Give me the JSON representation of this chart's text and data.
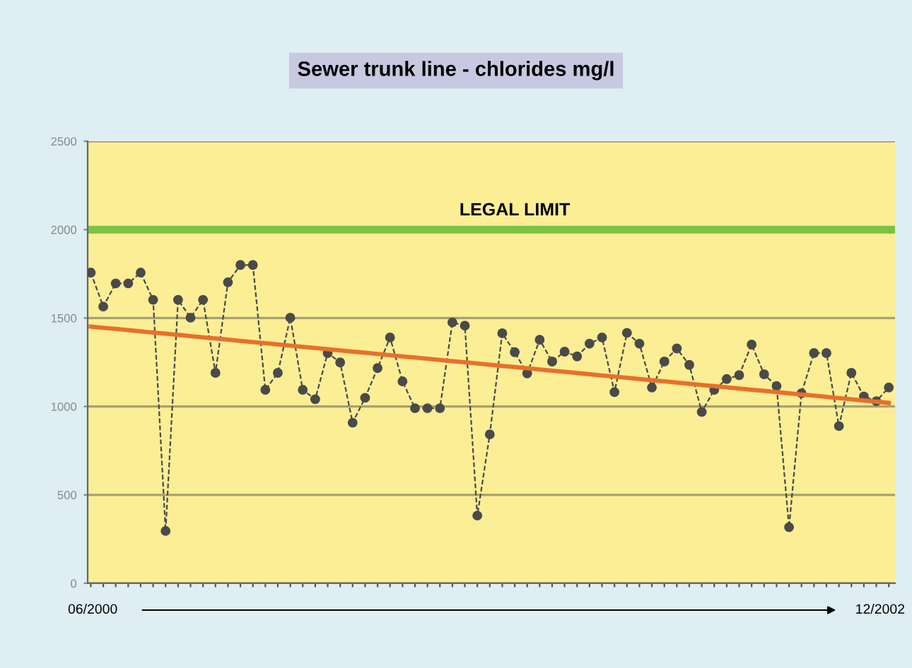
{
  "chart_data": {
    "type": "line",
    "title": "Sewer trunk line - chlorides mg/l",
    "categories": [
      null,
      null,
      null,
      null,
      null,
      null,
      null,
      null,
      null,
      null,
      null,
      null,
      null,
      null,
      null,
      null,
      null,
      null,
      null,
      null,
      null,
      null,
      null,
      null,
      null,
      null,
      null,
      null,
      null,
      null,
      null,
      null,
      null,
      null,
      null,
      null,
      null,
      null,
      null,
      null,
      null,
      null,
      null,
      null,
      null,
      null,
      null,
      null,
      null,
      null,
      null,
      null,
      null,
      null,
      null,
      null,
      null,
      null,
      null,
      null,
      null,
      null,
      null,
      null,
      null
    ],
    "series": [
      {
        "color": "#4a4a4a",
        "marker": "circle",
        "line_style": "dashed",
        "values": [
          1757,
          1565,
          1696,
          1696,
          1757,
          1603,
          296,
          1603,
          1502,
          1603,
          1190,
          1702,
          1800,
          1800,
          1094,
          1190,
          1502,
          1094,
          1041,
          1302,
          1249,
          908,
          1049,
          1217,
          1390,
          1142,
          990,
          990,
          990,
          1475,
          1457,
          383,
          842,
          1414,
          1307,
          1187,
          1377,
          1254,
          1310,
          1283,
          1355,
          1390,
          1081,
          1416,
          1355,
          1107,
          1254,
          1328,
          1235,
          969,
          1094,
          1155,
          1177,
          1350,
          1182,
          1115,
          317,
          1075,
          1302,
          1302,
          889,
          1190,
          1057,
          1030,
          1107
        ]
      },
      {
        "type": "line",
        "color": "#e8702a",
        "marker": "none",
        "line_style": "solid",
        "values": [
          1452,
          1445,
          1439,
          1432,
          1425,
          1418,
          1412,
          1405,
          1398,
          1391,
          1385,
          1378,
          1371,
          1364,
          1358,
          1351,
          1344,
          1337,
          1331,
          1324,
          1317,
          1310,
          1304,
          1297,
          1290,
          1283,
          1277,
          1270,
          1263,
          1256,
          1250,
          1243,
          1236,
          1229,
          1223,
          1216,
          1209,
          1202,
          1196,
          1189,
          1182,
          1175,
          1169,
          1162,
          1155,
          1148,
          1142,
          1135,
          1128,
          1121,
          1115,
          1108,
          1101,
          1094,
          1088,
          1081,
          1074,
          1067,
          1061,
          1054,
          1047,
          1040,
          1034,
          1027,
          1020
        ]
      }
    ],
    "ylim": [
      0,
      2500
    ],
    "yticks": [
      0,
      500,
      1000,
      1500,
      2000,
      2500
    ],
    "grid": "y",
    "ref_lines": [
      {
        "axis": "y",
        "value": 2000,
        "label": "LEGAL LIMIT",
        "color": "#7cc242"
      }
    ],
    "annotations": [
      "06/2000",
      "12/2002"
    ]
  }
}
